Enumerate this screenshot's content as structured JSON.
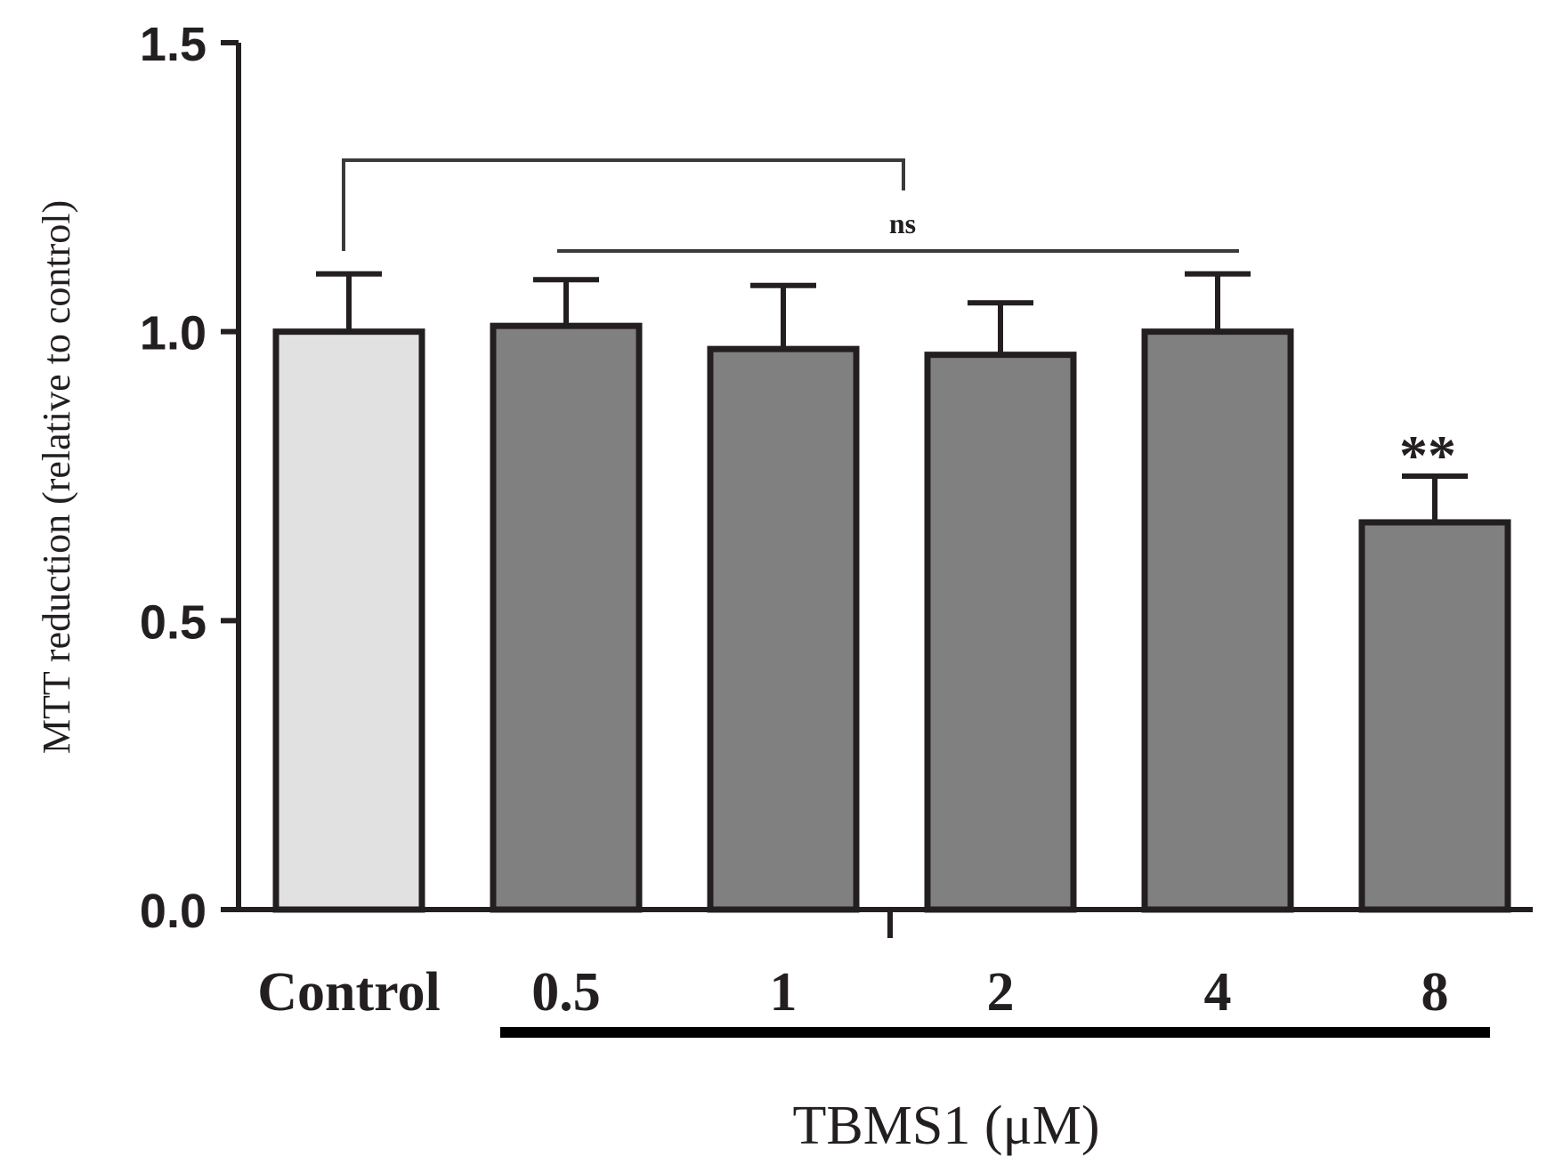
{
  "chart_data": {
    "type": "bar",
    "title": "",
    "xlabel": "TBMS1 (μM)",
    "ylabel": "MTT reduction (relative to control)",
    "ylim": [
      0,
      1.5
    ],
    "yticks": [
      "0.0",
      "0.5",
      "1.0",
      "1.5"
    ],
    "categories": [
      "Control",
      "0.5",
      "1",
      "2",
      "4",
      "8"
    ],
    "values": [
      1.0,
      1.01,
      0.97,
      0.96,
      1.0,
      0.67
    ],
    "errors": [
      0.1,
      0.08,
      0.11,
      0.09,
      0.1,
      0.08
    ],
    "bar_colors": [
      "#e1e1e1",
      "#808080",
      "#808080",
      "#808080",
      "#808080",
      "#808080"
    ],
    "grid": false,
    "annotations": {
      "ns_label": "ns",
      "significance_label": "**",
      "significance_category": "8"
    }
  },
  "colors": {
    "axis": "#231f20",
    "bracket": "#3a3a3a"
  }
}
